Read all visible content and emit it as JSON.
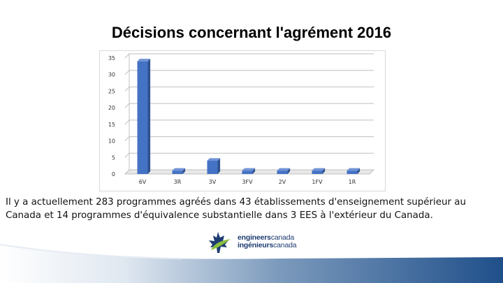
{
  "title": "Décisions concernant l'agrément 2016",
  "body_text": "Il y a actuellement 283 programmes agréés dans 43 établissements d'enseignement supérieur au Canada et 14 programmes d'équivalence substantielle dans 3 EES à l'extérieur du Canada.",
  "logo": {
    "line1_bold": "engineers",
    "line1_light": "canada",
    "line2_bold": "ingénieurs",
    "line2_light": "canada"
  },
  "colors": {
    "bar": "#4472c4",
    "bar_dark": "#2f528f",
    "footer_blue": "#1f4f8a"
  },
  "chart_data": {
    "type": "bar",
    "categories": [
      "6V",
      "3R",
      "3V",
      "3FV",
      "2V",
      "1FV",
      "1R"
    ],
    "values": [
      34,
      1,
      4,
      1,
      1,
      1,
      1
    ],
    "title": "",
    "xlabel": "",
    "ylabel": "",
    "ylim": [
      0,
      35
    ],
    "yticks": [
      0,
      5,
      10,
      15,
      20,
      25,
      30,
      35
    ],
    "grid": true,
    "legend": "none"
  }
}
